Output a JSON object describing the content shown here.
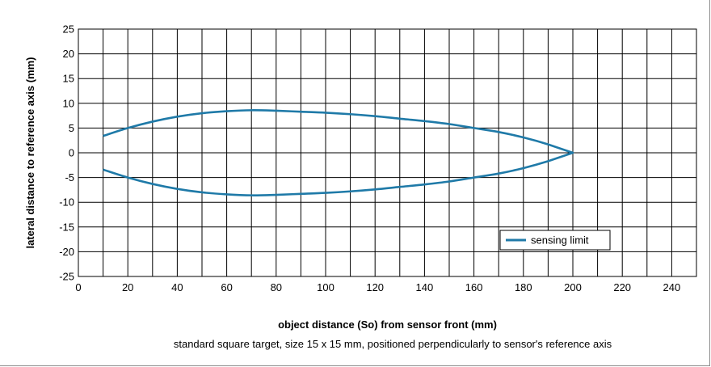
{
  "chart_data": {
    "type": "line",
    "xlabel": "object distance (So) from sensor front (mm)",
    "ylabel": "lateral distance to reference axis (mm)",
    "note": "standard square target, size 15 x 15 mm, positioned perpendicularly to sensor's reference axis",
    "xlim": [
      0,
      250
    ],
    "ylim": [
      -25,
      25
    ],
    "x_ticks": [
      0,
      20,
      40,
      60,
      80,
      100,
      120,
      140,
      160,
      180,
      200,
      220,
      240
    ],
    "y_ticks": [
      25,
      20,
      15,
      10,
      5,
      0,
      -5,
      -10,
      -15,
      -20,
      -25
    ],
    "grid": true,
    "legend_position": "bottom-right",
    "series": [
      {
        "name": "sensing limit",
        "color": "#1f7aa8",
        "points": [
          [
            10,
            3.4
          ],
          [
            20,
            5.0
          ],
          [
            30,
            6.3
          ],
          [
            40,
            7.3
          ],
          [
            50,
            8.0
          ],
          [
            60,
            8.4
          ],
          [
            70,
            8.6
          ],
          [
            80,
            8.5
          ],
          [
            90,
            8.3
          ],
          [
            100,
            8.1
          ],
          [
            110,
            7.8
          ],
          [
            120,
            7.4
          ],
          [
            130,
            6.9
          ],
          [
            140,
            6.4
          ],
          [
            150,
            5.8
          ],
          [
            160,
            5.0
          ],
          [
            170,
            4.2
          ],
          [
            180,
            3.1
          ],
          [
            190,
            1.7
          ],
          [
            200,
            0
          ],
          [
            190,
            -1.7
          ],
          [
            180,
            -3.1
          ],
          [
            170,
            -4.2
          ],
          [
            160,
            -5.0
          ],
          [
            150,
            -5.8
          ],
          [
            140,
            -6.4
          ],
          [
            130,
            -6.9
          ],
          [
            120,
            -7.4
          ],
          [
            110,
            -7.8
          ],
          [
            100,
            -8.1
          ],
          [
            90,
            -8.3
          ],
          [
            80,
            -8.5
          ],
          [
            70,
            -8.6
          ],
          [
            60,
            -8.4
          ],
          [
            50,
            -8.0
          ],
          [
            40,
            -7.3
          ],
          [
            30,
            -6.3
          ],
          [
            20,
            -5.0
          ],
          [
            10,
            -3.4
          ]
        ]
      }
    ]
  }
}
